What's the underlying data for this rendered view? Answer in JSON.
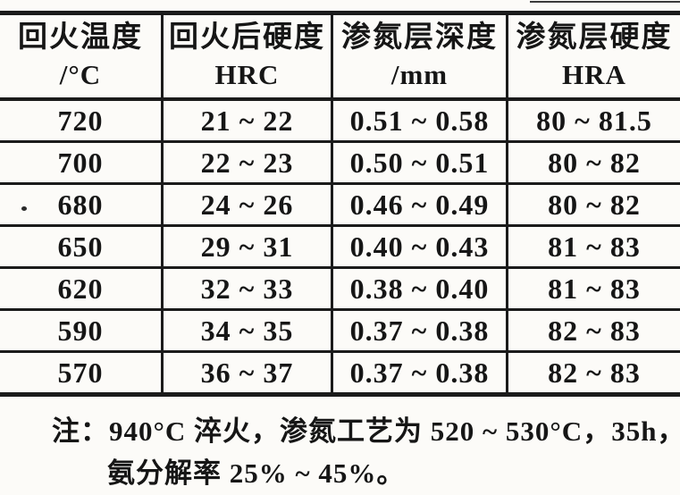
{
  "document": {
    "type": "scanned-technical-table",
    "language": "zh-CN",
    "ink_color": "#1b1b1b",
    "paper_color": "#fcfbf8"
  },
  "table": {
    "headers": [
      {
        "line1": "回火温度",
        "line2": "/°C"
      },
      {
        "line1": "回火后硬度",
        "line2": "HRC"
      },
      {
        "line1": "渗氮层深度",
        "line2": "/mm"
      },
      {
        "line1": "渗氮层硬度",
        "line2": "HRA"
      }
    ],
    "rows": [
      [
        "720",
        "21 ~ 22",
        "0.51 ~ 0.58",
        "80 ~ 81.5"
      ],
      [
        "700",
        "22 ~ 23",
        "0.50 ~ 0.51",
        "80 ~ 82"
      ],
      [
        "680",
        "24 ~ 26",
        "0.46 ~ 0.49",
        "80 ~ 82"
      ],
      [
        "650",
        "29 ~ 31",
        "0.40 ~ 0.43",
        "81 ~ 83"
      ],
      [
        "620",
        "32 ~ 33",
        "0.38 ~ 0.40",
        "81 ~ 83"
      ],
      [
        "590",
        "34 ~ 35",
        "0.37 ~ 0.38",
        "82 ~ 83"
      ],
      [
        "570",
        "36 ~ 37",
        "0.37 ~ 0.38",
        "82 ~ 83"
      ]
    ]
  },
  "note": {
    "line1": "注：940°C 淬火，渗氮工艺为 520 ~ 530°C，35h，",
    "line2": "氨分解率 25% ~ 45%。"
  }
}
